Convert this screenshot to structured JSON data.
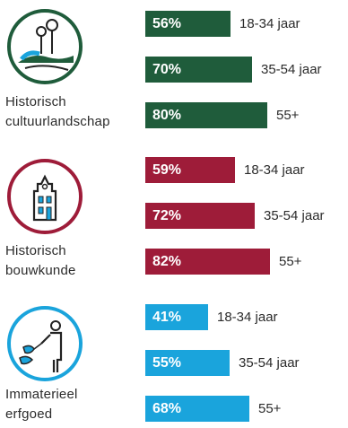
{
  "chart_data": {
    "type": "bar",
    "orientation": "horizontal",
    "groups": [
      {
        "label_lines": [
          "Historisch",
          "cultuurlandschap"
        ],
        "icon": "landscape-trees-icon",
        "color": "#1f5c3b",
        "bars": [
          {
            "category": "18-34 jaar",
            "value": 56,
            "label": "56%"
          },
          {
            "category": "35-54 jaar",
            "value": 70,
            "label": "70%"
          },
          {
            "category": "55+",
            "value": 80,
            "label": "80%"
          }
        ]
      },
      {
        "label_lines": [
          "Historisch",
          "bouwkunde"
        ],
        "icon": "historic-building-icon",
        "color": "#9e1c39",
        "bars": [
          {
            "category": "18-34 jaar",
            "value": 59,
            "label": "59%"
          },
          {
            "category": "35-54 jaar",
            "value": 72,
            "label": "72%"
          },
          {
            "category": "55+",
            "value": 82,
            "label": "82%"
          }
        ]
      },
      {
        "label_lines": [
          "Immaterieel",
          "erfgoed"
        ],
        "icon": "intangible-heritage-figures-icon",
        "color": "#1aa4dc",
        "bars": [
          {
            "category": "18-34 jaar",
            "value": 41,
            "label": "41%"
          },
          {
            "category": "35-54 jaar",
            "value": 55,
            "label": "55%"
          },
          {
            "category": "55+",
            "value": 68,
            "label": "68%"
          }
        ]
      }
    ]
  }
}
